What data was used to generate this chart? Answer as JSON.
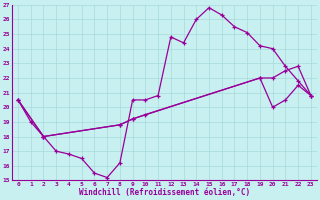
{
  "xlabel": "Windchill (Refroidissement éolien,°C)",
  "bg_color": "#c8f0f0",
  "grid_color": "#a8dada",
  "line_color": "#990099",
  "ylim": [
    15,
    27
  ],
  "xlim": [
    -0.5,
    23.5
  ],
  "yticks": [
    15,
    16,
    17,
    18,
    19,
    20,
    21,
    22,
    23,
    24,
    25,
    26,
    27
  ],
  "xticks": [
    0,
    1,
    2,
    3,
    4,
    5,
    6,
    7,
    8,
    9,
    10,
    11,
    12,
    13,
    14,
    15,
    16,
    17,
    18,
    19,
    20,
    21,
    22,
    23
  ],
  "line1_x": [
    0,
    1,
    2,
    3,
    4,
    5,
    6,
    7,
    8,
    9,
    10,
    11,
    12,
    13,
    14,
    15,
    16,
    17,
    18,
    19,
    20,
    21,
    22,
    23
  ],
  "line1_y": [
    20.5,
    19.0,
    18.0,
    17.0,
    16.8,
    16.5,
    15.5,
    15.2,
    16.2,
    20.5,
    20.5,
    20.8,
    24.8,
    24.4,
    26.0,
    26.8,
    26.3,
    25.5,
    25.1,
    24.2,
    24.0,
    22.8,
    21.8,
    20.8
  ],
  "line2_x": [
    0,
    2,
    8,
    9,
    19,
    20,
    21,
    22,
    23
  ],
  "line2_y": [
    20.5,
    18.0,
    18.8,
    19.2,
    22.0,
    22.0,
    22.5,
    22.8,
    20.8
  ],
  "line3_x": [
    0,
    2,
    8,
    9,
    10,
    19,
    20,
    21,
    22,
    23
  ],
  "line3_y": [
    20.5,
    18.0,
    18.8,
    19.2,
    19.5,
    22.0,
    20.0,
    20.5,
    21.5,
    20.8
  ]
}
